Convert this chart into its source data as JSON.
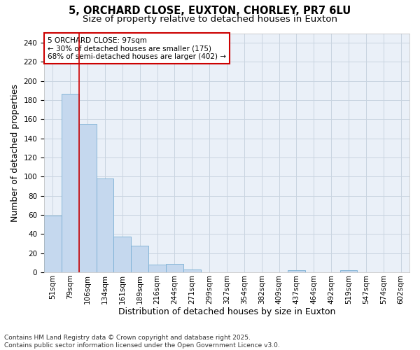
{
  "title_line1": "5, ORCHARD CLOSE, EUXTON, CHORLEY, PR7 6LU",
  "title_line2": "Size of property relative to detached houses in Euxton",
  "xlabel": "Distribution of detached houses by size in Euxton",
  "ylabel": "Number of detached properties",
  "bar_values": [
    59,
    187,
    155,
    98,
    37,
    28,
    8,
    9,
    3,
    0,
    0,
    0,
    0,
    0,
    2,
    0,
    0,
    2,
    0,
    0,
    0
  ],
  "bar_labels": [
    "51sqm",
    "79sqm",
    "106sqm",
    "134sqm",
    "161sqm",
    "189sqm",
    "216sqm",
    "244sqm",
    "271sqm",
    "299sqm",
    "327sqm",
    "354sqm",
    "382sqm",
    "409sqm",
    "437sqm",
    "464sqm",
    "492sqm",
    "519sqm",
    "547sqm",
    "574sqm",
    "602sqm"
  ],
  "bar_color": "#c5d8ee",
  "bar_edge_color": "#7aafd4",
  "grid_color": "#c8d4e0",
  "background_color": "#ffffff",
  "plot_bg_color": "#eaf0f8",
  "vline_color": "#cc0000",
  "vline_x": 2,
  "annotation_line1": "5 ORCHARD CLOSE: 97sqm",
  "annotation_line2": "← 30% of detached houses are smaller (175)",
  "annotation_line3": "68% of semi-detached houses are larger (402) →",
  "annotation_box_color": "#ffffff",
  "annotation_edge_color": "#cc0000",
  "ylim": [
    0,
    250
  ],
  "yticks": [
    0,
    20,
    40,
    60,
    80,
    100,
    120,
    140,
    160,
    180,
    200,
    220,
    240
  ],
  "footer_text": "Contains HM Land Registry data © Crown copyright and database right 2025.\nContains public sector information licensed under the Open Government Licence v3.0.",
  "title_fontsize": 10.5,
  "subtitle_fontsize": 9.5,
  "label_fontsize": 9,
  "tick_fontsize": 7.5,
  "annotation_fontsize": 7.5,
  "footer_fontsize": 6.5
}
